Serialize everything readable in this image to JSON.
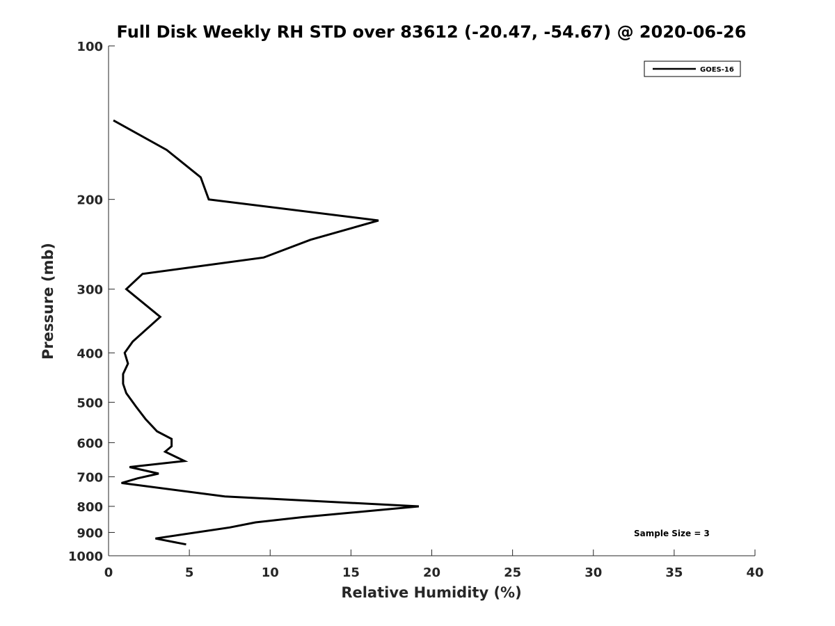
{
  "chart_data": {
    "type": "line",
    "title": "Full Disk Weekly RH STD over 83612 (-20.47, -54.67) @ 2020-06-26",
    "xlabel": "Relative Humidity (%)",
    "ylabel": "Pressure (mb)",
    "xlim": [
      0,
      40
    ],
    "ylim": [
      100,
      1000
    ],
    "yscale": "log",
    "reverse_y": true,
    "x_ticks": [
      0,
      5,
      10,
      15,
      20,
      25,
      30,
      35,
      40
    ],
    "y_ticks": [
      100,
      200,
      300,
      400,
      500,
      600,
      700,
      800,
      900,
      1000
    ],
    "grid": false,
    "legend_position": "top-right",
    "series": [
      {
        "name": "GOES-16",
        "color": "#000000",
        "points": [
          [
            0.3,
            140
          ],
          [
            3.6,
            160
          ],
          [
            5.7,
            181
          ],
          [
            6.2,
            200
          ],
          [
            16.7,
            220
          ],
          [
            12.5,
            240
          ],
          [
            9.6,
            260
          ],
          [
            2.1,
            280
          ],
          [
            1.1,
            300
          ],
          [
            3.2,
            340
          ],
          [
            1.5,
            380
          ],
          [
            1.0,
            400
          ],
          [
            1.2,
            420
          ],
          [
            0.9,
            440
          ],
          [
            0.9,
            460
          ],
          [
            1.1,
            480
          ],
          [
            1.7,
            510
          ],
          [
            2.3,
            540
          ],
          [
            3.0,
            570
          ],
          [
            3.9,
            590
          ],
          [
            3.9,
            610
          ],
          [
            3.5,
            625
          ],
          [
            4.7,
            652
          ],
          [
            1.3,
            670
          ],
          [
            3.1,
            690
          ],
          [
            1.8,
            705
          ],
          [
            0.8,
            720
          ],
          [
            7.2,
            765
          ],
          [
            19.2,
            800
          ],
          [
            12.0,
            840
          ],
          [
            9.1,
            860
          ],
          [
            7.5,
            880
          ],
          [
            2.9,
            925
          ],
          [
            4.8,
            950
          ]
        ]
      }
    ],
    "annotations": [
      {
        "text": "Sample Size = 3",
        "position": "bottom-right"
      }
    ]
  }
}
